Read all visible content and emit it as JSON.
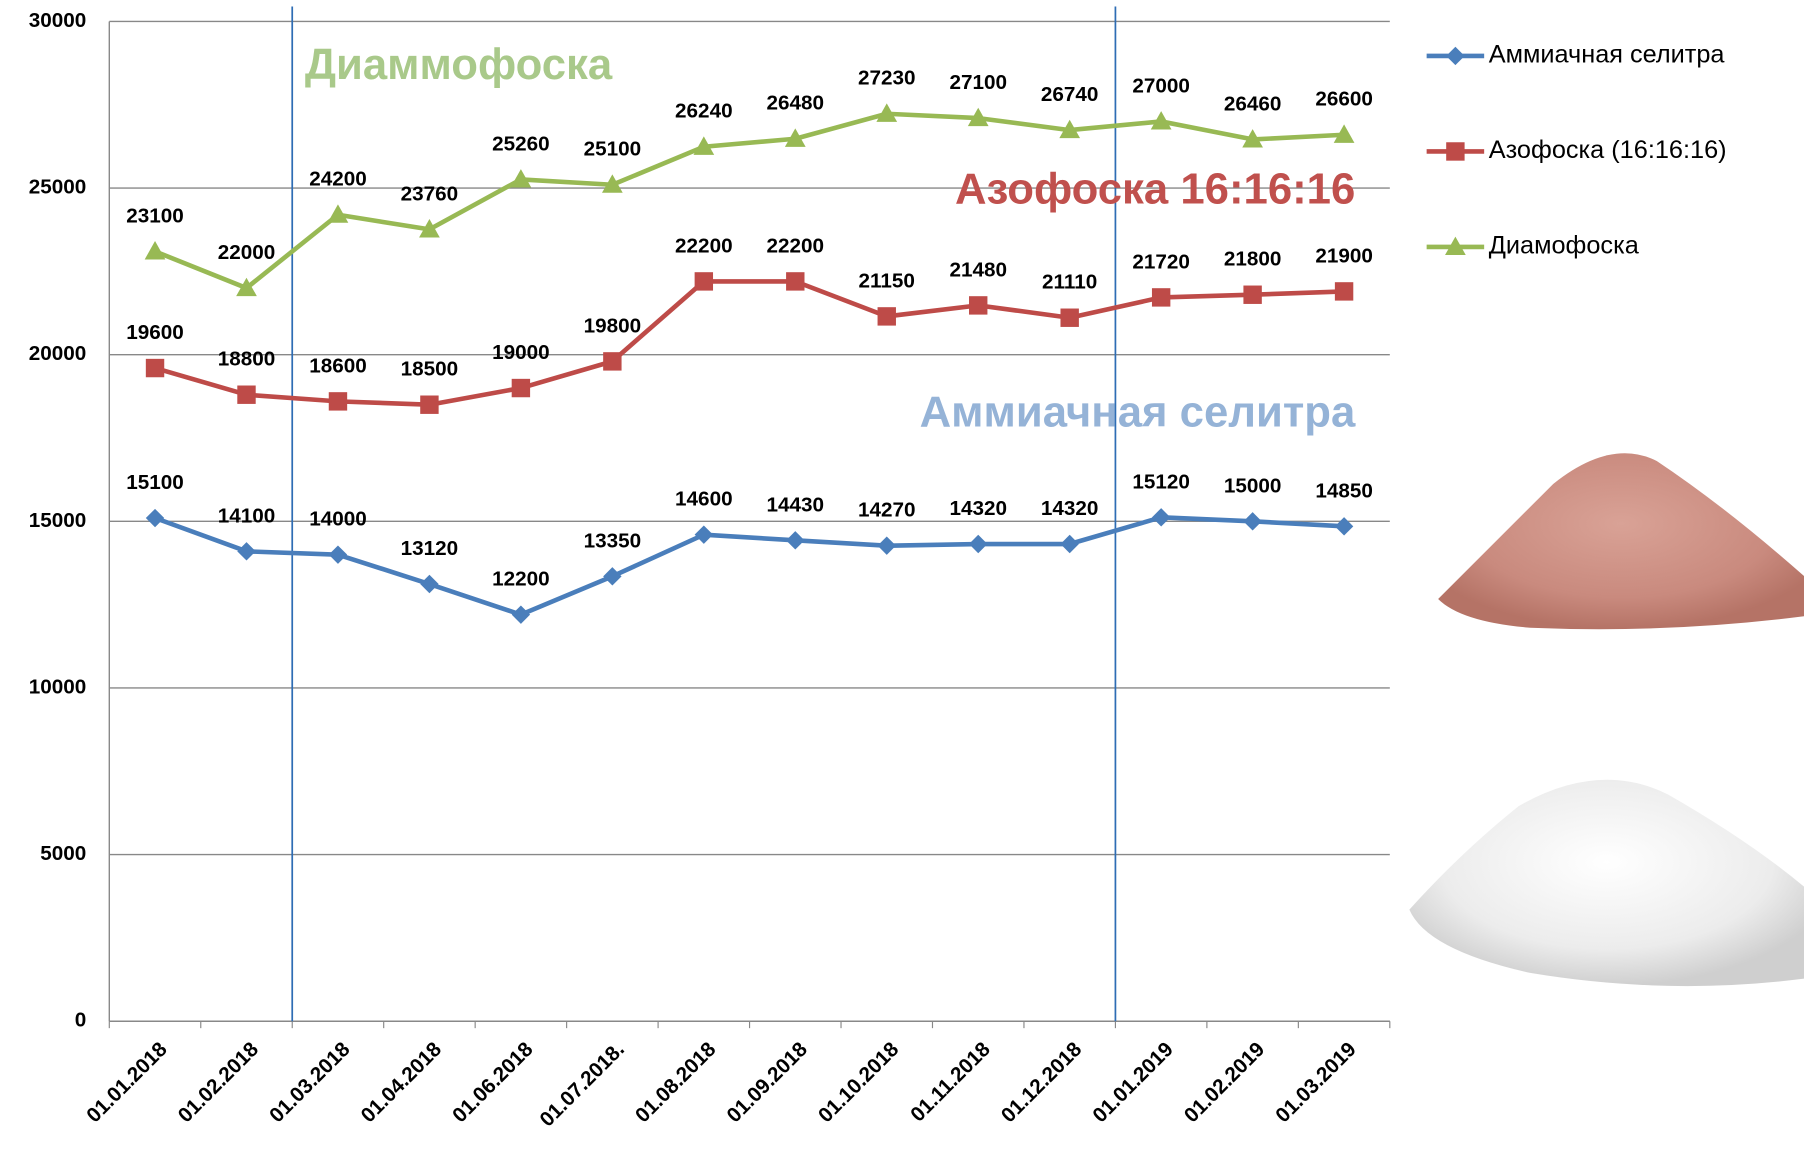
{
  "chart_data": {
    "type": "line",
    "categories": [
      "01.01.2018",
      "01.02.2018",
      "01.03.2018",
      "01.04.2018",
      "01.06.2018",
      "01.07.2018.",
      "01.08.2018",
      "01.09.2018",
      "01.10.2018",
      "01.11.2018",
      "01.12.2018",
      "01.01.2019",
      "01.02.2019",
      "01.03.2019"
    ],
    "series": [
      {
        "name": "Аммиачная селитра",
        "color": "#4a7ebb",
        "marker": "diamond",
        "values": [
          15100,
          14100,
          14000,
          13120,
          12200,
          13350,
          14600,
          14430,
          14270,
          14320,
          14320,
          15120,
          15000,
          14850
        ]
      },
      {
        "name": "Азофоска (16:16:16)",
        "color": "#be4b48",
        "marker": "square",
        "values": [
          19600,
          18800,
          18600,
          18500,
          19000,
          19800,
          22200,
          22200,
          21150,
          21480,
          21110,
          21720,
          21800,
          21900
        ]
      },
      {
        "name": "Диамофоска",
        "color": "#98b954",
        "marker": "triangle",
        "values": [
          23100,
          22000,
          24200,
          23760,
          25260,
          25100,
          26240,
          26480,
          27230,
          27100,
          26740,
          27000,
          26460,
          26600
        ]
      }
    ],
    "annotations": [
      {
        "text": "Диаммофоска",
        "color": "#a9c98a"
      },
      {
        "text": "Азофоска 16:16:16",
        "color": "#c0504d"
      },
      {
        "text": "Аммиачная селитра",
        "color": "#95b3d7"
      }
    ],
    "ylim": [
      0,
      30000
    ],
    "yticks": [
      0,
      5000,
      10000,
      15000,
      20000,
      25000,
      30000
    ],
    "grid": true,
    "legend": "right"
  }
}
